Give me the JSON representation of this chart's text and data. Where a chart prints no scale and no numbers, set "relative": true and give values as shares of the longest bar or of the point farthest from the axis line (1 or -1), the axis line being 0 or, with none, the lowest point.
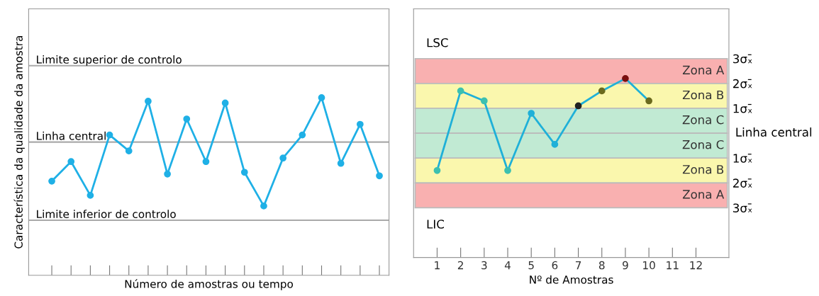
{
  "chart_data": [
    {
      "type": "line",
      "relative": true,
      "xlabel": "Número de amostras ou tempo",
      "ylabel": "Característica da qualidade da amostra",
      "categories": [
        null,
        null,
        null,
        null,
        null,
        null,
        null,
        null,
        null,
        null,
        null,
        null,
        null,
        null,
        null,
        null,
        null,
        null
      ],
      "series": [
        {
          "color": "#1fb0e6",
          "values": [
            0.53,
            0.64,
            0.45,
            0.79,
            0.7,
            0.98,
            0.57,
            0.88,
            0.64,
            0.97,
            0.58,
            0.39,
            0.66,
            0.79,
            1,
            0.63,
            0.85,
            0.56
          ]
        }
      ],
      "marker": "circle",
      "line_style": "solid",
      "tick_labels": false,
      "grid": false,
      "ref_lines": [
        {
          "axis": "y",
          "value": 1.18,
          "label": "Limite superior de controlo",
          "color": "#aaaaaa"
        },
        {
          "axis": "y",
          "value": 0.75,
          "label": "Linha central",
          "color": "#aaaaaa"
        },
        {
          "axis": "y",
          "value": 0.31,
          "label": "Limite inferior de controlo",
          "color": "#aaaaaa"
        }
      ]
    },
    {
      "type": "line",
      "xlabel": "Nº de Amostras",
      "y2label": "Linha central",
      "x": [
        1,
        2,
        3,
        4,
        5,
        6,
        7,
        8,
        9,
        10
      ],
      "series": [
        {
          "color": "#1fb0d8",
          "axis": "y2",
          "values": [
            -1.5,
            1.7,
            1.3,
            -1.5,
            0.8,
            -0.45,
            1.1,
            1.7,
            2.2,
            1.3
          ],
          "colors": [
            "#3cc0b0",
            "#3cc0b0",
            "#3cc0b0",
            "#3cc0b0",
            "#1fb0d8",
            "#1fb0d8",
            "#222222",
            "#6b6a1e",
            "#7a1010",
            "#6b6a1e"
          ]
        }
      ],
      "marker": "circle",
      "line_style": "solid",
      "grid": false,
      "tick_labels": "x",
      "xlim": [
        0,
        13.4
      ],
      "xticks": [
        1,
        2,
        3,
        4,
        5,
        6,
        7,
        8,
        9,
        10,
        11,
        12
      ],
      "y2lim": [
        -5,
        5
      ],
      "y2ticks": [
        {
          "value": 3,
          "label": "3σₓ̄"
        },
        {
          "value": 2,
          "label": "2σₓ̄"
        },
        {
          "value": 1,
          "label": "1σₓ̄"
        },
        {
          "value": -1,
          "label": "1σₓ̄"
        },
        {
          "value": -2,
          "label": "2σₓ̄"
        },
        {
          "value": -3,
          "label": "3σₓ̄"
        }
      ],
      "bands": [
        {
          "axis": "y2",
          "from": 2,
          "to": 3,
          "label": "Zona A",
          "color": "#f9b0b0"
        },
        {
          "axis": "y2",
          "from": 1,
          "to": 2,
          "label": "Zona B",
          "color": "#faf7ad"
        },
        {
          "axis": "y2",
          "from": 0,
          "to": 1,
          "label": "Zona C",
          "color": "#c1ead3"
        },
        {
          "axis": "y2",
          "from": -1,
          "to": 0,
          "label": "Zona C",
          "color": "#c1ead3"
        },
        {
          "axis": "y2",
          "from": -2,
          "to": -1,
          "label": "Zona B",
          "color": "#faf7ad"
        },
        {
          "axis": "y2",
          "from": -3,
          "to": -2,
          "label": "Zona A",
          "color": "#f9b0b0"
        }
      ],
      "annotations": [
        "LSC",
        "LIC"
      ]
    }
  ]
}
